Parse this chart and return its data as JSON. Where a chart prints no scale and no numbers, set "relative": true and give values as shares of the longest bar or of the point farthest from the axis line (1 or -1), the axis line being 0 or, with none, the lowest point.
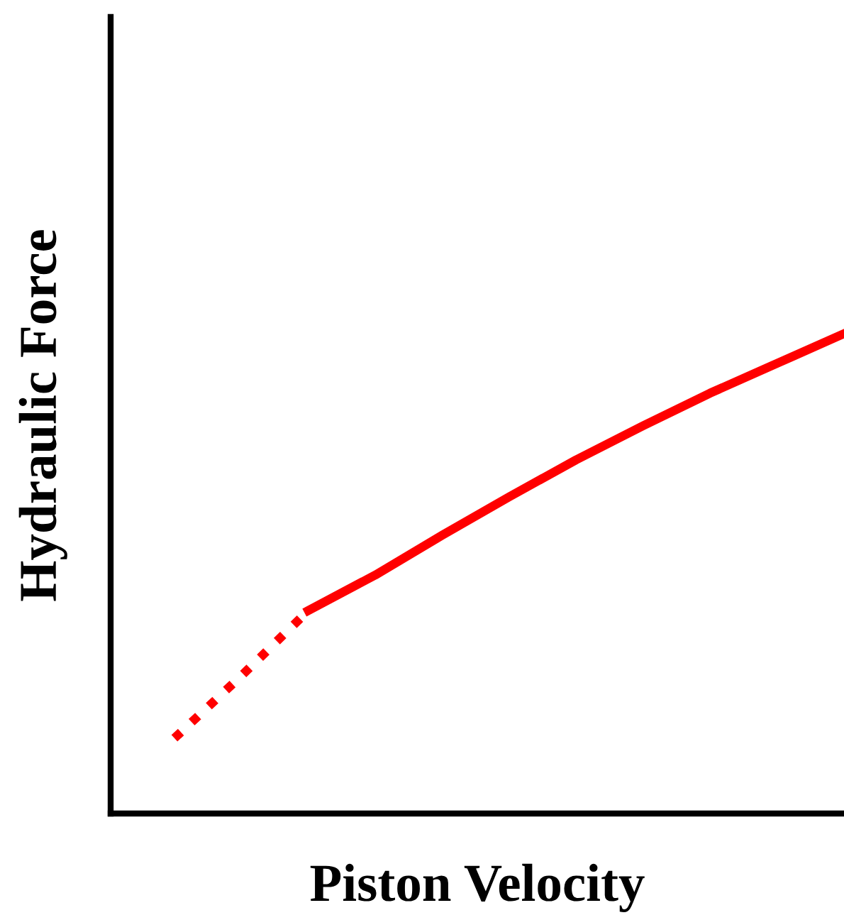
{
  "chart_data": {
    "type": "line",
    "relative": true,
    "xlabel": "Piston Velocity",
    "ylabel": "Hydraulic Force",
    "categories": [
      null,
      null,
      null,
      null,
      null,
      null,
      null,
      null,
      null,
      null,
      null
    ],
    "series": [
      {
        "color": "#ff0000",
        "line_style": "dotted",
        "values": [
          0.157,
          0.287,
          0.423,
          null,
          null,
          null,
          null,
          null,
          null,
          null,
          null
        ]
      },
      {
        "color": "#ff0000",
        "line_style": "solid",
        "values": [
          null,
          null,
          0.423,
          0.497,
          0.58,
          0.66,
          0.737,
          0.808,
          0.876,
          0.938,
          1
        ]
      }
    ],
    "grid": false,
    "legend": false,
    "marker": "none"
  }
}
